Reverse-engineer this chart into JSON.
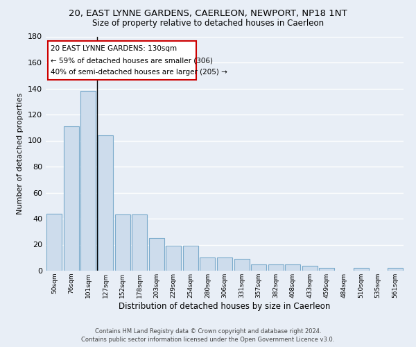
{
  "title": "20, EAST LYNNE GARDENS, CAERLEON, NEWPORT, NP18 1NT",
  "subtitle": "Size of property relative to detached houses in Caerleon",
  "xlabel": "Distribution of detached houses by size in Caerleon",
  "ylabel": "Number of detached properties",
  "footer_line1": "Contains HM Land Registry data © Crown copyright and database right 2024.",
  "footer_line2": "Contains public sector information licensed under the Open Government Licence v3.0.",
  "bar_labels": [
    "50sqm",
    "76sqm",
    "101sqm",
    "127sqm",
    "152sqm",
    "178sqm",
    "203sqm",
    "229sqm",
    "254sqm",
    "280sqm",
    "306sqm",
    "331sqm",
    "357sqm",
    "382sqm",
    "408sqm",
    "433sqm",
    "459sqm",
    "484sqm",
    "510sqm",
    "535sqm",
    "561sqm"
  ],
  "bar_values": [
    44,
    111,
    138,
    104,
    43,
    43,
    25,
    19,
    19,
    10,
    10,
    9,
    5,
    5,
    5,
    4,
    2,
    0,
    2,
    0,
    2
  ],
  "bar_color": "#cddcec",
  "bar_edge_color": "#7aaacb",
  "background_color": "#e8eef6",
  "grid_color": "#ffffff",
  "vline_color": "#000000",
  "vline_x": 2.5,
  "annotation_text_line1": "20 EAST LYNNE GARDENS: 130sqm",
  "annotation_text_line2": "← 59% of detached houses are smaller (306)",
  "annotation_text_line3": "40% of semi-detached houses are larger (205) →",
  "annotation_box_facecolor": "#ffffff",
  "annotation_box_edgecolor": "#cc0000",
  "ylim": [
    0,
    180
  ],
  "yticks": [
    0,
    20,
    40,
    60,
    80,
    100,
    120,
    140,
    160,
    180
  ],
  "figsize": [
    6.0,
    5.0
  ],
  "dpi": 100
}
